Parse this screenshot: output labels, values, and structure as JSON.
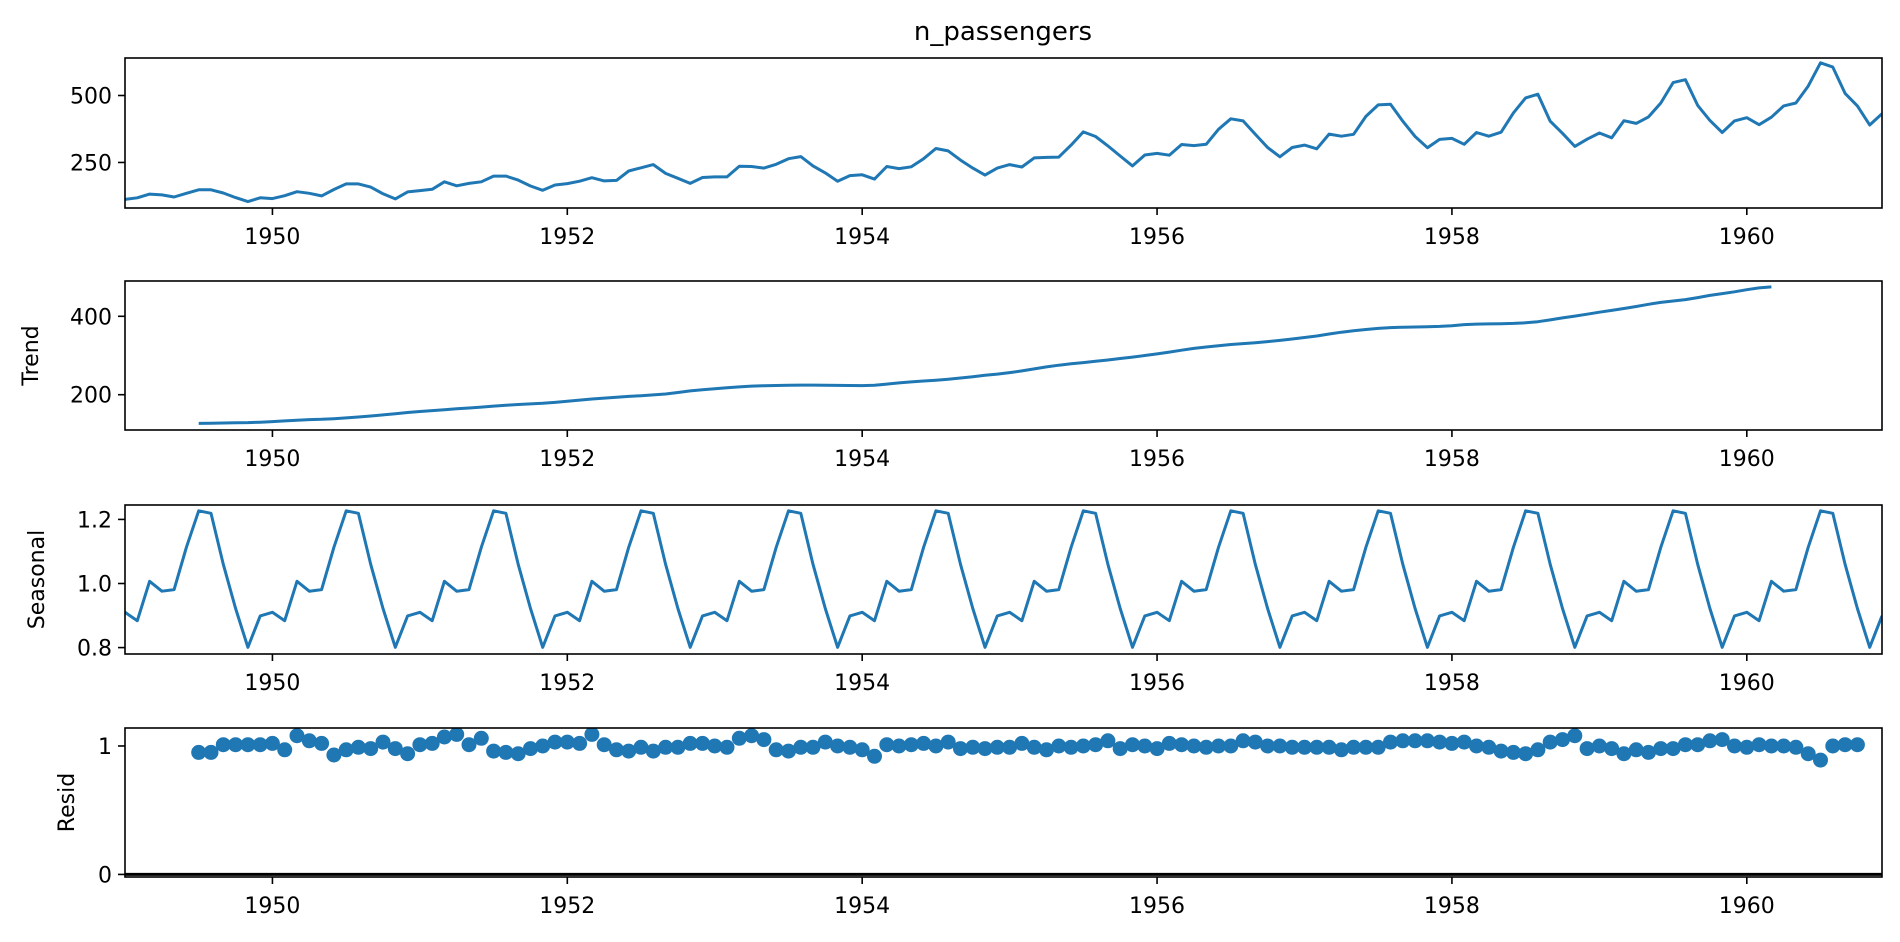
{
  "figure_title": "n_passengers",
  "colors": {
    "series": "#1f77b4",
    "axes": "#000000",
    "background": "#ffffff"
  },
  "chart_data": [
    {
      "type": "line",
      "panel": "observed",
      "title": "n_passengers",
      "ylabel": "",
      "xlim": [
        1949.0,
        1960.917
      ],
      "ylim": [
        80,
        640
      ],
      "xticks": [
        1950,
        1952,
        1954,
        1956,
        1958,
        1960
      ],
      "xtick_labels": [
        "1950",
        "1952",
        "1954",
        "1956",
        "1958",
        "1960"
      ],
      "yticks": [
        250,
        500
      ],
      "ytick_labels": [
        "250",
        "500"
      ],
      "x_start": 1949.0,
      "x_step_months": 1,
      "values": [
        112,
        118,
        132,
        129,
        121,
        135,
        148,
        148,
        136,
        119,
        104,
        118,
        115,
        126,
        141,
        135,
        125,
        149,
        170,
        170,
        158,
        133,
        114,
        140,
        145,
        150,
        178,
        163,
        172,
        178,
        199,
        199,
        184,
        162,
        146,
        166,
        171,
        180,
        193,
        181,
        183,
        218,
        230,
        242,
        209,
        191,
        172,
        194,
        196,
        196,
        236,
        235,
        229,
        243,
        264,
        272,
        237,
        211,
        180,
        201,
        204,
        188,
        235,
        227,
        234,
        264,
        302,
        293,
        259,
        229,
        203,
        229,
        242,
        233,
        267,
        269,
        270,
        315,
        364,
        347,
        312,
        274,
        237,
        278,
        284,
        277,
        317,
        313,
        318,
        374,
        413,
        405,
        355,
        306,
        271,
        306,
        315,
        301,
        356,
        348,
        355,
        422,
        465,
        467,
        404,
        347,
        305,
        336,
        340,
        318,
        362,
        348,
        363,
        435,
        491,
        505,
        404,
        359,
        310,
        337,
        360,
        342,
        406,
        396,
        420,
        472,
        548,
        559,
        463,
        407,
        362,
        405,
        417,
        391,
        419,
        461,
        472,
        535,
        622,
        606,
        508,
        461,
        390,
        432
      ]
    },
    {
      "type": "line",
      "panel": "trend",
      "ylabel": "Trend",
      "xlim": [
        1949.0,
        1960.917
      ],
      "ylim": [
        110,
        490
      ],
      "xticks": [
        1950,
        1952,
        1954,
        1956,
        1958,
        1960
      ],
      "xtick_labels": [
        "1950",
        "1952",
        "1954",
        "1956",
        "1958",
        "1960"
      ],
      "yticks": [
        200,
        400
      ],
      "ytick_labels": [
        "200",
        "400"
      ],
      "x_start": 1949.5,
      "x_step_months": 1,
      "values": [
        126.8,
        127.3,
        127.9,
        128.6,
        129.0,
        129.8,
        131.3,
        133.1,
        134.9,
        136.4,
        137.4,
        138.8,
        140.9,
        143.2,
        145.7,
        148.4,
        151.5,
        154.7,
        157.1,
        159.5,
        161.8,
        164.0,
        166.2,
        168.5,
        170.9,
        173.0,
        175.0,
        176.5,
        178.0,
        180.3,
        183.1,
        186.2,
        189.0,
        191.3,
        193.7,
        195.7,
        197.6,
        199.6,
        201.8,
        205.6,
        209.6,
        212.5,
        215.2,
        217.6,
        219.8,
        221.9,
        223.0,
        223.5,
        224.0,
        224.5,
        224.4,
        224.0,
        223.7,
        223.4,
        223.3,
        224.3,
        227.1,
        230.1,
        232.6,
        235.0,
        237.0,
        239.5,
        242.7,
        246.0,
        249.4,
        252.6,
        256.3,
        260.8,
        265.8,
        271.0,
        275.2,
        278.8,
        282.0,
        285.2,
        288.6,
        292.3,
        296.0,
        299.9,
        304.1,
        308.6,
        313.4,
        318.0,
        321.8,
        325.0,
        328.0,
        330.3,
        332.6,
        335.4,
        338.5,
        342.0,
        345.8,
        349.8,
        354.9,
        359.5,
        363.3,
        366.3,
        369.0,
        371.2,
        372.2,
        372.6,
        373.1,
        374.1,
        376.1,
        378.7,
        380.2,
        380.6,
        381.2,
        381.9,
        383.3,
        386.1,
        390.7,
        396.0,
        400.5,
        405.4,
        410.4,
        415.1,
        419.9,
        424.9,
        430.6,
        435.5,
        439.0,
        442.6,
        447.6,
        453.2,
        457.8,
        462.4,
        467.8,
        472.3,
        475.0
      ]
    },
    {
      "type": "line",
      "panel": "seasonal",
      "ylabel": "Seasonal",
      "xlim": [
        1949.0,
        1960.917
      ],
      "ylim": [
        0.78,
        1.245
      ],
      "xticks": [
        1950,
        1952,
        1954,
        1956,
        1958,
        1960
      ],
      "xtick_labels": [
        "1950",
        "1952",
        "1954",
        "1956",
        "1958",
        "1960"
      ],
      "yticks": [
        0.8,
        1.0,
        1.2
      ],
      "ytick_labels": [
        "0.8",
        "1.0",
        "1.2"
      ],
      "x_start": 1949.0,
      "x_step_months": 1,
      "season_pattern": [
        0.91,
        0.884,
        1.007,
        0.976,
        0.981,
        1.113,
        1.227,
        1.219,
        1.06,
        0.922,
        0.801,
        0.899
      ],
      "n_points": 144
    },
    {
      "type": "scatter",
      "panel": "resid",
      "ylabel": "Resid",
      "xlim": [
        1949.0,
        1960.917
      ],
      "ylim": [
        -0.02,
        1.14
      ],
      "xticks": [
        1950,
        1952,
        1954,
        1956,
        1958,
        1960
      ],
      "xtick_labels": [
        "1950",
        "1952",
        "1954",
        "1956",
        "1958",
        "1960"
      ],
      "yticks": [
        0,
        1
      ],
      "ytick_labels": [
        "0",
        "1"
      ],
      "baseline": 0,
      "x_start": 1949.5,
      "x_step_months": 1,
      "values": [
        0.95,
        0.95,
        1.01,
        1.01,
        1.01,
        1.01,
        1.02,
        0.97,
        1.08,
        1.04,
        1.02,
        0.93,
        0.97,
        0.99,
        0.98,
        1.03,
        0.98,
        0.94,
        1.01,
        1.02,
        1.07,
        1.09,
        1.01,
        1.06,
        0.96,
        0.95,
        0.94,
        0.98,
        1.0,
        1.03,
        1.03,
        1.02,
        1.09,
        1.01,
        0.97,
        0.96,
        0.99,
        0.96,
        0.99,
        0.99,
        1.02,
        1.02,
        1.0,
        0.99,
        1.06,
        1.08,
        1.05,
        0.97,
        0.96,
        0.99,
        0.99,
        1.03,
        1.0,
        0.99,
        0.97,
        0.92,
        1.01,
        1.0,
        1.01,
        1.02,
        1.0,
        1.03,
        0.98,
        0.99,
        0.98,
        0.99,
        0.99,
        1.02,
        0.99,
        0.97,
        1.0,
        0.99,
        1.0,
        1.01,
        1.04,
        0.98,
        1.01,
        1.0,
        0.98,
        1.02,
        1.01,
        1.0,
        0.99,
        1.0,
        1.0,
        1.04,
        1.03,
        1.0,
        1.0,
        0.99,
        0.99,
        0.99,
        0.99,
        0.97,
        0.99,
        0.99,
        0.99,
        1.03,
        1.04,
        1.04,
        1.04,
        1.03,
        1.02,
        1.03,
        1.0,
        0.99,
        0.96,
        0.95,
        0.94,
        0.97,
        1.03,
        1.05,
        1.08,
        0.98,
        1.0,
        0.98,
        0.94,
        0.97,
        0.95,
        0.98,
        0.98,
        1.01,
        1.01,
        1.04,
        1.05,
        1.0,
        0.99,
        1.01,
        1.0,
        1.0,
        0.99,
        0.94,
        0.89,
        1.0,
        1.01,
        1.01
      ]
    }
  ]
}
